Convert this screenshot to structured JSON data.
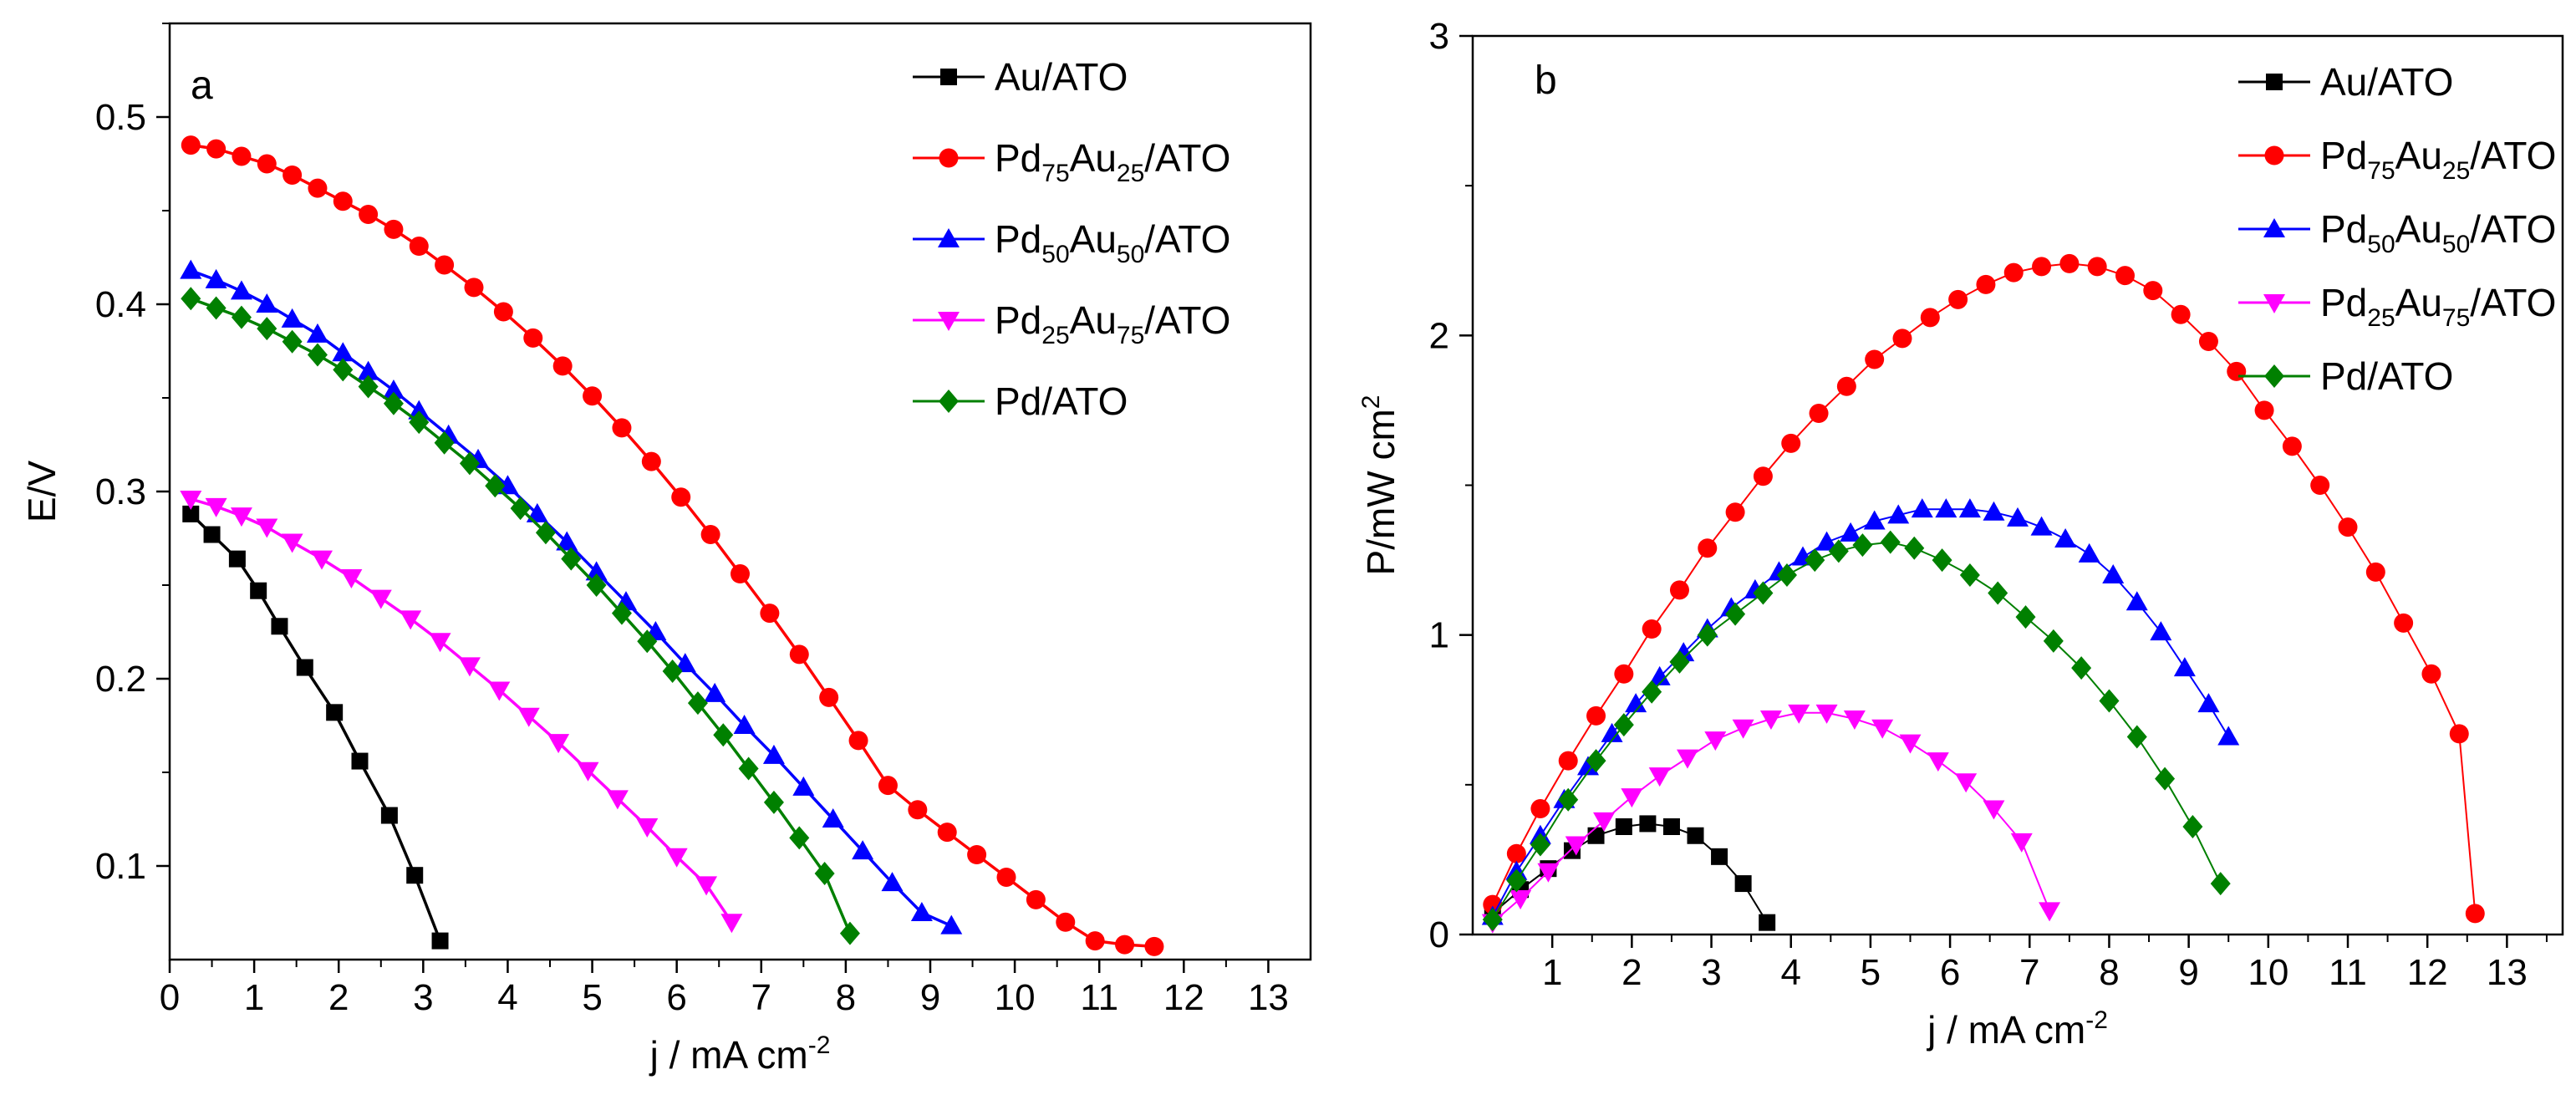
{
  "chart_data": [
    {
      "type": "line",
      "panel_label": "a",
      "ylabel": "E/V",
      "xlabel_main": "j / mA cm",
      "xlabel_sup": "-2",
      "xlim": [
        0,
        13.5
      ],
      "ylim": [
        0.05,
        0.55
      ],
      "xticks": [
        0,
        1,
        2,
        3,
        4,
        5,
        6,
        7,
        8,
        9,
        10,
        11,
        12,
        13
      ],
      "yticks": [
        0.1,
        0.2,
        0.3,
        0.4,
        0.5
      ],
      "ytick_labels": [
        "0.1",
        "0.2",
        "0.3",
        "0.4",
        "0.5"
      ],
      "legend_position": "top-right",
      "series": [
        {
          "name": "Au/ATO",
          "main": "Au/ATO",
          "color": "#000000",
          "marker": "square",
          "x": [
            0.25,
            0.5,
            0.8,
            1.05,
            1.3,
            1.6,
            1.95,
            2.25,
            2.6,
            2.9,
            3.2
          ],
          "y": [
            0.288,
            0.277,
            0.264,
            0.247,
            0.228,
            0.206,
            0.182,
            0.156,
            0.127,
            0.095,
            0.06
          ]
        },
        {
          "name": "Pd75Au25/ATO",
          "main": "Pd",
          "s1": "75",
          "m2": "Au",
          "s2": "25",
          "tail": "/ATO",
          "color": "#ff0000",
          "marker": "circle",
          "x": [
            0.25,
            0.55,
            0.85,
            1.15,
            1.45,
            1.75,
            2.05,
            2.35,
            2.65,
            2.95,
            3.25,
            3.6,
            3.95,
            4.3,
            4.65,
            5.0,
            5.35,
            5.7,
            6.05,
            6.4,
            6.75,
            7.1,
            7.45,
            7.8,
            8.15,
            8.5,
            8.85,
            9.2,
            9.55,
            9.9,
            10.25,
            10.6,
            10.95,
            11.3,
            11.65
          ],
          "y": [
            0.485,
            0.483,
            0.479,
            0.475,
            0.469,
            0.462,
            0.455,
            0.448,
            0.44,
            0.431,
            0.421,
            0.409,
            0.396,
            0.382,
            0.367,
            0.351,
            0.334,
            0.316,
            0.297,
            0.277,
            0.256,
            0.235,
            0.213,
            0.19,
            0.167,
            0.143,
            0.13,
            0.118,
            0.106,
            0.094,
            0.082,
            0.07,
            0.06,
            0.058,
            0.057
          ]
        },
        {
          "name": "Pd50Au50/ATO",
          "main": "Pd",
          "s1": "50",
          "m2": "Au",
          "s2": "50",
          "tail": "/ATO",
          "color": "#0000ff",
          "marker": "triangle-up",
          "x": [
            0.25,
            0.55,
            0.85,
            1.15,
            1.45,
            1.75,
            2.05,
            2.35,
            2.65,
            2.95,
            3.3,
            3.65,
            4.0,
            4.35,
            4.7,
            5.05,
            5.4,
            5.75,
            6.1,
            6.45,
            6.8,
            7.15,
            7.5,
            7.85,
            8.2,
            8.55,
            8.9,
            9.25
          ],
          "y": [
            0.418,
            0.413,
            0.407,
            0.4,
            0.392,
            0.384,
            0.374,
            0.364,
            0.354,
            0.343,
            0.33,
            0.317,
            0.303,
            0.288,
            0.273,
            0.257,
            0.241,
            0.225,
            0.208,
            0.192,
            0.175,
            0.159,
            0.142,
            0.125,
            0.108,
            0.091,
            0.075,
            0.068
          ]
        },
        {
          "name": "Pd25Au75/ATO",
          "main": "Pd",
          "s1": "25",
          "m2": "Au",
          "s2": "75",
          "tail": "/ATO",
          "color": "#ff00ff",
          "marker": "triangle-down",
          "x": [
            0.25,
            0.55,
            0.85,
            1.15,
            1.45,
            1.8,
            2.15,
            2.5,
            2.85,
            3.2,
            3.55,
            3.9,
            4.25,
            4.6,
            4.95,
            5.3,
            5.65,
            6.0,
            6.35,
            6.65
          ],
          "y": [
            0.296,
            0.292,
            0.287,
            0.281,
            0.273,
            0.264,
            0.254,
            0.243,
            0.232,
            0.22,
            0.207,
            0.194,
            0.18,
            0.166,
            0.151,
            0.136,
            0.121,
            0.105,
            0.09,
            0.07
          ]
        },
        {
          "name": "Pd/ATO",
          "main": "Pd/ATO",
          "color": "#008000",
          "marker": "diamond",
          "x": [
            0.25,
            0.55,
            0.85,
            1.15,
            1.45,
            1.75,
            2.05,
            2.35,
            2.65,
            2.95,
            3.25,
            3.55,
            3.85,
            4.15,
            4.45,
            4.75,
            5.05,
            5.35,
            5.65,
            5.95,
            6.25,
            6.55,
            6.85,
            7.15,
            7.45,
            7.75,
            8.05
          ],
          "y": [
            0.403,
            0.398,
            0.393,
            0.387,
            0.38,
            0.373,
            0.365,
            0.356,
            0.347,
            0.337,
            0.326,
            0.315,
            0.303,
            0.291,
            0.278,
            0.264,
            0.25,
            0.235,
            0.22,
            0.204,
            0.187,
            0.17,
            0.152,
            0.134,
            0.115,
            0.096,
            0.064
          ]
        }
      ]
    },
    {
      "type": "line",
      "panel_label": "b",
      "ylabel": "P/mW cm",
      "ylabel_sup": "2",
      "xlabel_main": "j / mA cm",
      "xlabel_sup": "-2",
      "xlim": [
        0,
        13.7
      ],
      "ylim": [
        0,
        3
      ],
      "xticks": [
        1,
        2,
        3,
        4,
        5,
        6,
        7,
        8,
        9,
        10,
        11,
        12,
        13
      ],
      "yticks": [
        0,
        1,
        2,
        3
      ],
      "ytick_labels": [
        "0",
        "1",
        "2",
        "3"
      ],
      "legend_position": "top-right",
      "series": [
        {
          "name": "Au/ATO",
          "main": "Au/ATO",
          "color": "#000000",
          "marker": "square",
          "x": [
            0.25,
            0.6,
            0.95,
            1.25,
            1.55,
            1.9,
            2.2,
            2.5,
            2.8,
            3.1,
            3.4,
            3.7
          ],
          "y": [
            0.07,
            0.15,
            0.22,
            0.28,
            0.33,
            0.36,
            0.37,
            0.36,
            0.33,
            0.26,
            0.17,
            0.04
          ]
        },
        {
          "name": "Pd75Au25/ATO",
          "main": "Pd",
          "s1": "75",
          "m2": "Au",
          "s2": "25",
          "tail": "/ATO",
          "color": "#ff0000",
          "marker": "circle",
          "x": [
            0.25,
            0.55,
            0.85,
            1.2,
            1.55,
            1.9,
            2.25,
            2.6,
            2.95,
            3.3,
            3.65,
            4.0,
            4.35,
            4.7,
            5.05,
            5.4,
            5.75,
            6.1,
            6.45,
            6.8,
            7.15,
            7.5,
            7.85,
            8.2,
            8.55,
            8.9,
            9.25,
            9.6,
            9.95,
            10.3,
            10.65,
            11.0,
            11.35,
            11.7,
            12.05,
            12.4,
            12.6
          ],
          "y": [
            0.1,
            0.27,
            0.42,
            0.58,
            0.73,
            0.87,
            1.02,
            1.15,
            1.29,
            1.41,
            1.53,
            1.64,
            1.74,
            1.83,
            1.92,
            1.99,
            2.06,
            2.12,
            2.17,
            2.21,
            2.23,
            2.24,
            2.23,
            2.2,
            2.15,
            2.07,
            1.98,
            1.88,
            1.75,
            1.63,
            1.5,
            1.36,
            1.21,
            1.04,
            0.87,
            0.67,
            0.07
          ]
        },
        {
          "name": "Pd50Au50/ATO",
          "main": "Pd",
          "s1": "50",
          "m2": "Au",
          "s2": "50",
          "tail": "/ATO",
          "color": "#0000ff",
          "marker": "triangle-up",
          "x": [
            0.25,
            0.55,
            0.85,
            1.15,
            1.45,
            1.75,
            2.05,
            2.35,
            2.65,
            2.95,
            3.25,
            3.55,
            3.85,
            4.15,
            4.45,
            4.75,
            5.05,
            5.35,
            5.65,
            5.95,
            6.25,
            6.55,
            6.85,
            7.15,
            7.45,
            7.75,
            8.05,
            8.35,
            8.65,
            8.95,
            9.25,
            9.5
          ],
          "y": [
            0.06,
            0.21,
            0.33,
            0.45,
            0.56,
            0.67,
            0.77,
            0.86,
            0.94,
            1.02,
            1.09,
            1.15,
            1.21,
            1.26,
            1.31,
            1.34,
            1.38,
            1.4,
            1.42,
            1.42,
            1.42,
            1.41,
            1.39,
            1.36,
            1.32,
            1.27,
            1.2,
            1.11,
            1.01,
            0.89,
            0.77,
            0.66
          ]
        },
        {
          "name": "Pd25Au75/ATO",
          "main": "Pd",
          "s1": "25",
          "m2": "Au",
          "s2": "75",
          "tail": "/ATO",
          "color": "#ff00ff",
          "marker": "triangle-down",
          "x": [
            0.25,
            0.6,
            0.95,
            1.3,
            1.65,
            2.0,
            2.35,
            2.7,
            3.05,
            3.4,
            3.75,
            4.1,
            4.45,
            4.8,
            5.15,
            5.5,
            5.85,
            6.2,
            6.55,
            6.9,
            7.25
          ],
          "y": [
            0.04,
            0.12,
            0.21,
            0.3,
            0.38,
            0.46,
            0.53,
            0.59,
            0.65,
            0.69,
            0.72,
            0.74,
            0.74,
            0.72,
            0.69,
            0.64,
            0.58,
            0.51,
            0.42,
            0.31,
            0.08
          ]
        },
        {
          "name": "Pd/ATO",
          "main": "Pd/ATO",
          "color": "#008000",
          "marker": "diamond",
          "x": [
            0.25,
            0.55,
            0.85,
            1.2,
            1.55,
            1.9,
            2.25,
            2.6,
            2.95,
            3.3,
            3.65,
            3.95,
            4.3,
            4.6,
            4.9,
            5.25,
            5.55,
            5.9,
            6.25,
            6.6,
            6.95,
            7.3,
            7.65,
            8.0,
            8.35,
            8.7,
            9.05,
            9.4
          ],
          "y": [
            0.05,
            0.18,
            0.3,
            0.45,
            0.58,
            0.7,
            0.81,
            0.91,
            1.0,
            1.07,
            1.14,
            1.2,
            1.25,
            1.28,
            1.3,
            1.31,
            1.29,
            1.25,
            1.2,
            1.14,
            1.06,
            0.98,
            0.89,
            0.78,
            0.66,
            0.52,
            0.36,
            0.17
          ]
        }
      ]
    }
  ]
}
